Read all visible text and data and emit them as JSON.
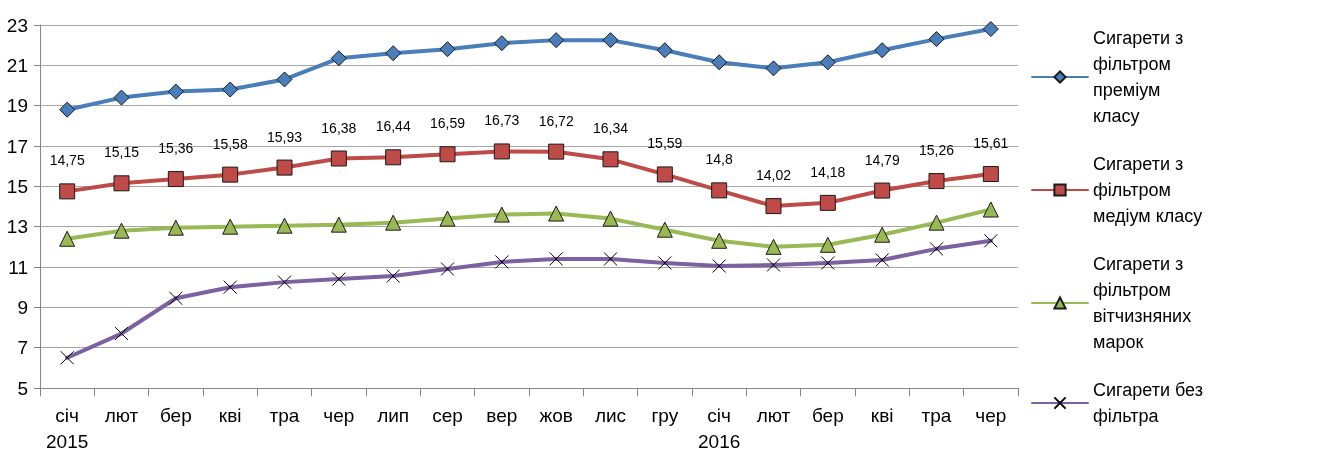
{
  "chart_data": {
    "type": "line",
    "categories": [
      "січ\n2015",
      "лют",
      "бер",
      "кві",
      "тра",
      "чер",
      "лип",
      "сер",
      "вер",
      "жов",
      "лис",
      "гру",
      "січ\n2016",
      "лют",
      "бер",
      "кві",
      "тра",
      "чер"
    ],
    "series": [
      {
        "name": "Сигарети з фільтром преміум класу",
        "color": "#4a7ebb",
        "marker": "diamond",
        "values": [
          18.8,
          19.4,
          19.7,
          19.8,
          20.3,
          21.35,
          21.6,
          21.8,
          22.1,
          22.25,
          22.25,
          21.75,
          21.15,
          20.85,
          21.15,
          21.75,
          22.3,
          22.8
        ]
      },
      {
        "name": "Сигарети з фільтром медіум класу",
        "color": "#be4b48",
        "marker": "square",
        "values": [
          14.75,
          15.15,
          15.36,
          15.58,
          15.93,
          16.38,
          16.44,
          16.59,
          16.73,
          16.72,
          16.34,
          15.59,
          14.8,
          14.02,
          14.18,
          14.79,
          15.26,
          15.61
        ],
        "value_labels": [
          "14,75",
          "15,15",
          "15,36",
          "15,58",
          "15,93",
          "16,38",
          "16,44",
          "16,59",
          "16,73",
          "16,72",
          "16,34",
          "15,59",
          "14,8",
          "14,02",
          "14,18",
          "14,79",
          "15,26",
          "15,61"
        ]
      },
      {
        "name": "Сигарети з фільтром вітчизняних марок",
        "color": "#98b954",
        "marker": "triangle",
        "values": [
          12.4,
          12.8,
          12.95,
          13.0,
          13.05,
          13.1,
          13.2,
          13.4,
          13.6,
          13.65,
          13.4,
          12.85,
          12.3,
          12.0,
          12.1,
          12.6,
          13.2,
          13.85
        ]
      },
      {
        "name": "Сигарети без фільтра",
        "color": "#7d60a0",
        "marker": "cross",
        "values": [
          6.5,
          7.7,
          9.45,
          10.0,
          10.25,
          10.4,
          10.55,
          10.9,
          11.25,
          11.4,
          11.4,
          11.2,
          11.05,
          11.1,
          11.2,
          11.35,
          11.9,
          12.3
        ]
      }
    ],
    "ylim": [
      5,
      23
    ],
    "yticks": [
      5,
      7,
      9,
      11,
      13,
      15,
      17,
      19,
      21,
      23
    ],
    "grid": "y",
    "legend": "right",
    "line_style": "solid"
  }
}
